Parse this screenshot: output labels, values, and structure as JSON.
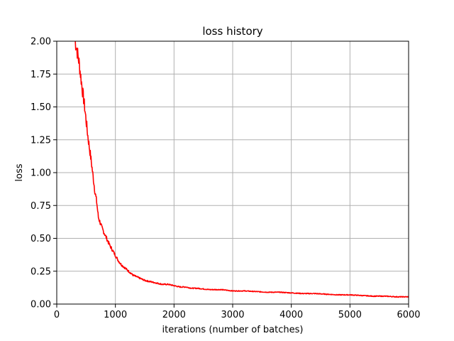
{
  "chart_data": {
    "type": "line",
    "title": "loss history",
    "xlabel": "iterations (number of batches)",
    "ylabel": "loss",
    "xlim": [
      0,
      6000
    ],
    "ylim": [
      0,
      2.0
    ],
    "grid": true,
    "x_ticks": [
      0,
      1000,
      2000,
      3000,
      4000,
      5000,
      6000
    ],
    "x_tick_labels": [
      "0",
      "1000",
      "2000",
      "3000",
      "4000",
      "5000",
      "6000"
    ],
    "y_ticks": [
      0,
      0.25,
      0.5,
      0.75,
      1.0,
      1.25,
      1.5,
      1.75,
      2.0
    ],
    "y_tick_labels": [
      "0.00",
      "0.25",
      "0.50",
      "0.75",
      "1.00",
      "1.25",
      "1.50",
      "1.75",
      "2.00"
    ],
    "colors": {
      "line": "#ff0000",
      "grid": "#b0b0b0",
      "axes": "#000000"
    },
    "series": [
      {
        "x": [
          310,
          330,
          350,
          380,
          410,
          440,
          470,
          500,
          530,
          560,
          590,
          620,
          650,
          680,
          710,
          740,
          770,
          800,
          850,
          900,
          950,
          1000,
          1050,
          1100,
          1150,
          1200,
          1300,
          1400,
          1500,
          1600,
          1700,
          1800,
          1900,
          2000,
          2100,
          2200,
          2300,
          2400,
          2600,
          2800,
          3000,
          3200,
          3400,
          3600,
          3800,
          4000,
          4200,
          4400,
          4600,
          4800,
          5000,
          5200,
          5400,
          5600,
          5800,
          6000
        ],
        "y": [
          2.0,
          1.97,
          1.92,
          1.84,
          1.73,
          1.62,
          1.52,
          1.4,
          1.28,
          1.18,
          1.08,
          0.97,
          0.86,
          0.78,
          0.66,
          0.62,
          0.58,
          0.55,
          0.5,
          0.45,
          0.41,
          0.37,
          0.33,
          0.3,
          0.28,
          0.26,
          0.22,
          0.2,
          0.18,
          0.17,
          0.16,
          0.15,
          0.15,
          0.14,
          0.13,
          0.13,
          0.12,
          0.12,
          0.11,
          0.11,
          0.1,
          0.1,
          0.095,
          0.09,
          0.09,
          0.085,
          0.08,
          0.08,
          0.075,
          0.07,
          0.07,
          0.065,
          0.06,
          0.06,
          0.055,
          0.055
        ]
      }
    ]
  }
}
